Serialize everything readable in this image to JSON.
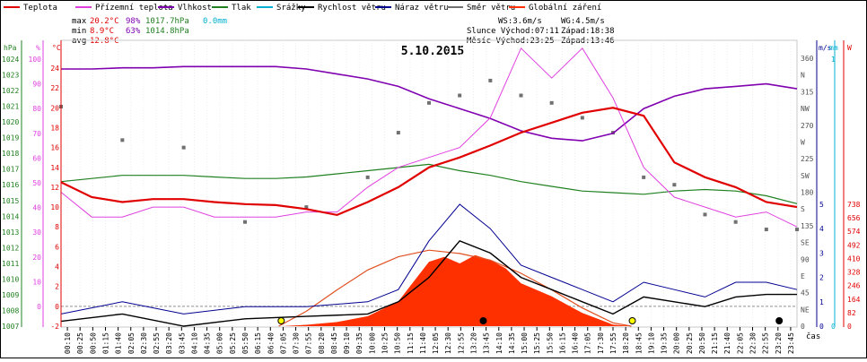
{
  "chart_data": {
    "type": "line",
    "title": "5.10.2015",
    "xlabel": "čas",
    "legend": {
      "placement": "top",
      "items": [
        {
          "label": "Teplota",
          "color": "#e00000"
        },
        {
          "label": "Přízemní teplota",
          "color": "#e040e0"
        },
        {
          "label": "Vlhkost",
          "color": "#8000b0"
        },
        {
          "label": "Tlak",
          "color": "#208020"
        },
        {
          "label": "Srážky",
          "color": "#00b0d0"
        },
        {
          "label": "Rychlost větru",
          "color": "#000000"
        },
        {
          "label": "Náraz větru",
          "color": "#000090"
        },
        {
          "label": "Směr větru",
          "color": "#707070"
        },
        {
          "label": "Globální záření",
          "color": "#ff3000"
        }
      ]
    },
    "stats": {
      "max": {
        "label": "max",
        "temp": "20.2°C",
        "hum": "98%",
        "press": "1017.7hPa",
        "rain": "0.0mm"
      },
      "min": {
        "label": "min",
        "temp": "8.9°C",
        "hum": "63%",
        "press": "1014.8hPa"
      },
      "avg": {
        "label": "avg",
        "temp": "12.8°C"
      }
    },
    "info": {
      "ws": "WS:3.6m/s",
      "wg": "WG:4.5m/s",
      "sun": "Slunce Východ:07:11",
      "sunset": "Západ:18:38",
      "moon": "Měsíc  Východ:23:25",
      "moonset": "Západ:13:46"
    },
    "axes": {
      "pressure": {
        "unit": "hPa",
        "ticks": [
          "1024",
          "1023",
          "1022",
          "1021",
          "1020",
          "1019",
          "1018",
          "1017",
          "1016",
          "1015",
          "1014",
          "1013",
          "1012",
          "1011",
          "1010",
          "1009",
          "1008",
          "1007"
        ]
      },
      "humidity": {
        "unit": "%",
        "ticks": [
          "100",
          "90",
          "80",
          "70",
          "60",
          "50",
          "40",
          "30",
          "20",
          "10",
          "0"
        ]
      },
      "temperature": {
        "unit": "°C",
        "ticks": [
          "24",
          "22",
          "20",
          "18",
          "16",
          "14",
          "12",
          "10",
          "8",
          "6",
          "4",
          "2",
          "0",
          "-2"
        ]
      },
      "direction": {
        "ticks": [
          "360",
          "N",
          "315",
          "NW",
          "270",
          "W",
          "225",
          "SW",
          "180",
          "S",
          "135",
          "SE",
          "90",
          "E",
          "45",
          "NE",
          "0"
        ]
      },
      "wind": {
        "unit": "m/s",
        "ticks": [
          "5",
          "4",
          "3",
          "2",
          "1",
          "0"
        ]
      },
      "rain": {
        "unit": "mm",
        "ticks": [
          "1",
          "0"
        ]
      },
      "radiation": {
        "unit": "W",
        "ticks": [
          "738",
          "656",
          "574",
          "492",
          "410",
          "328",
          "246",
          "164",
          "82",
          "0"
        ]
      },
      "time": [
        "00:10",
        "00:25",
        "00:50",
        "01:15",
        "01:40",
        "02:05",
        "02:30",
        "02:55",
        "03:20",
        "03:45",
        "04:10",
        "04:35",
        "05:00",
        "05:25",
        "05:50",
        "06:15",
        "06:40",
        "07:05",
        "07:30",
        "07:55",
        "08:20",
        "08:45",
        "09:10",
        "09:35",
        "10:00",
        "10:25",
        "10:50",
        "11:15",
        "11:40",
        "12:05",
        "12:30",
        "12:55",
        "13:20",
        "13:45",
        "14:10",
        "14:35",
        "15:00",
        "15:25",
        "15:50",
        "16:15",
        "16:40",
        "17:05",
        "17:30",
        "17:55",
        "18:20",
        "18:45",
        "19:10",
        "19:35",
        "20:00",
        "20:25",
        "20:50",
        "21:15",
        "21:40",
        "22:05",
        "22:30",
        "22:55",
        "23:20",
        "23:45"
      ]
    },
    "series": {
      "temperature": [
        [
          0,
          12.5
        ],
        [
          1,
          11
        ],
        [
          2,
          10.5
        ],
        [
          3,
          10.8
        ],
        [
          4,
          10.8
        ],
        [
          5,
          10.5
        ],
        [
          6,
          10.3
        ],
        [
          7,
          10.2
        ],
        [
          8,
          9.8
        ],
        [
          9,
          9.2
        ],
        [
          10,
          10.5
        ],
        [
          11,
          12
        ],
        [
          12,
          14
        ],
        [
          13,
          15
        ],
        [
          14,
          16.2
        ],
        [
          15,
          17.5
        ],
        [
          16,
          18.5
        ],
        [
          17,
          19.5
        ],
        [
          18,
          20
        ],
        [
          19,
          19.2
        ],
        [
          20,
          14.5
        ],
        [
          21,
          13
        ],
        [
          22,
          12
        ],
        [
          23,
          10.5
        ],
        [
          24,
          10
        ]
      ],
      "ground_temperature": [
        [
          0,
          11.5
        ],
        [
          1,
          9
        ],
        [
          2,
          9
        ],
        [
          3,
          10
        ],
        [
          4,
          10
        ],
        [
          5,
          9
        ],
        [
          6,
          9
        ],
        [
          7,
          9
        ],
        [
          8,
          9.5
        ],
        [
          9,
          9.5
        ],
        [
          10,
          12
        ],
        [
          11,
          14
        ],
        [
          12,
          15
        ],
        [
          13,
          16
        ],
        [
          14,
          19
        ],
        [
          15,
          26
        ],
        [
          16,
          23
        ],
        [
          17,
          26
        ],
        [
          18,
          21
        ],
        [
          19,
          14
        ],
        [
          20,
          11
        ],
        [
          21,
          10
        ],
        [
          22,
          9
        ],
        [
          23,
          9.5
        ],
        [
          24,
          8
        ]
      ],
      "humidity": [
        [
          0,
          96
        ],
        [
          1,
          96
        ],
        [
          2,
          96.5
        ],
        [
          3,
          96.5
        ],
        [
          4,
          97
        ],
        [
          5,
          97
        ],
        [
          6,
          97
        ],
        [
          7,
          97
        ],
        [
          8,
          96
        ],
        [
          9,
          94
        ],
        [
          10,
          92
        ],
        [
          11,
          89
        ],
        [
          12,
          84
        ],
        [
          13,
          80
        ],
        [
          14,
          76
        ],
        [
          15,
          71
        ],
        [
          16,
          68
        ],
        [
          17,
          67
        ],
        [
          18,
          70
        ],
        [
          19,
          80
        ],
        [
          20,
          85
        ],
        [
          21,
          88
        ],
        [
          22,
          89
        ],
        [
          23,
          90
        ],
        [
          24,
          88
        ]
      ],
      "pressure": [
        [
          0,
          1016.2
        ],
        [
          1,
          1016.4
        ],
        [
          2,
          1016.6
        ],
        [
          3,
          1016.6
        ],
        [
          4,
          1016.6
        ],
        [
          5,
          1016.5
        ],
        [
          6,
          1016.4
        ],
        [
          7,
          1016.4
        ],
        [
          8,
          1016.5
        ],
        [
          9,
          1016.7
        ],
        [
          10,
          1016.9
        ],
        [
          11,
          1017.1
        ],
        [
          12,
          1017.3
        ],
        [
          13,
          1016.9
        ],
        [
          14,
          1016.6
        ],
        [
          15,
          1016.2
        ],
        [
          16,
          1015.9
        ],
        [
          17,
          1015.6
        ],
        [
          18,
          1015.5
        ],
        [
          19,
          1015.4
        ],
        [
          20,
          1015.6
        ],
        [
          21,
          1015.7
        ],
        [
          22,
          1015.6
        ],
        [
          23,
          1015.3
        ],
        [
          24,
          1014.8
        ]
      ],
      "wind_speed": [
        [
          0,
          0.2
        ],
        [
          2,
          0.5
        ],
        [
          4,
          0
        ],
        [
          6,
          0.3
        ],
        [
          8,
          0.4
        ],
        [
          10,
          0.5
        ],
        [
          11,
          1
        ],
        [
          12,
          2
        ],
        [
          13,
          3.5
        ],
        [
          14,
          3
        ],
        [
          15,
          2
        ],
        [
          16,
          1.5
        ],
        [
          17,
          1
        ],
        [
          18,
          0.5
        ],
        [
          19,
          1.2
        ],
        [
          20,
          1
        ],
        [
          21,
          0.8
        ],
        [
          22,
          1.2
        ],
        [
          23,
          1.3
        ],
        [
          24,
          1.3
        ]
      ],
      "wind_gust": [
        [
          0,
          0.5
        ],
        [
          2,
          1
        ],
        [
          4,
          0.5
        ],
        [
          6,
          0.8
        ],
        [
          8,
          0.8
        ],
        [
          10,
          1
        ],
        [
          11,
          1.5
        ],
        [
          12,
          3.5
        ],
        [
          13,
          5
        ],
        [
          14,
          4
        ],
        [
          15,
          2.5
        ],
        [
          16,
          2
        ],
        [
          17,
          1.5
        ],
        [
          18,
          1
        ],
        [
          19,
          1.8
        ],
        [
          20,
          1.5
        ],
        [
          21,
          1.2
        ],
        [
          22,
          1.8
        ],
        [
          23,
          1.8
        ],
        [
          24,
          1.5
        ]
      ],
      "wind_direction": [
        [
          0,
          295
        ],
        [
          2,
          250
        ],
        [
          4,
          240
        ],
        [
          6,
          140
        ],
        [
          8,
          160
        ],
        [
          10,
          200
        ],
        [
          11,
          260
        ],
        [
          12,
          300
        ],
        [
          13,
          310
        ],
        [
          14,
          330
        ],
        [
          15,
          310
        ],
        [
          16,
          300
        ],
        [
          17,
          280
        ],
        [
          18,
          260
        ],
        [
          19,
          200
        ],
        [
          20,
          190
        ],
        [
          21,
          150
        ],
        [
          22,
          140
        ],
        [
          23,
          130
        ],
        [
          24,
          130
        ]
      ],
      "radiation": [
        [
          7.2,
          0
        ],
        [
          8,
          8
        ],
        [
          9,
          25
        ],
        [
          10,
          60
        ],
        [
          11,
          150
        ],
        [
          12,
          390
        ],
        [
          12.5,
          420
        ],
        [
          13,
          380
        ],
        [
          13.5,
          430
        ],
        [
          14,
          400
        ],
        [
          14.5,
          350
        ],
        [
          15,
          260
        ],
        [
          16,
          180
        ],
        [
          17,
          80
        ],
        [
          18,
          10
        ],
        [
          18.6,
          0
        ]
      ],
      "clear_sky_radiation": [
        [
          7.1,
          0
        ],
        [
          8,
          90
        ],
        [
          9,
          220
        ],
        [
          10,
          340
        ],
        [
          11,
          420
        ],
        [
          12,
          460
        ],
        [
          13,
          440
        ],
        [
          14,
          400
        ],
        [
          15,
          320
        ],
        [
          16,
          220
        ],
        [
          17,
          110
        ],
        [
          18,
          20
        ],
        [
          18.6,
          0
        ]
      ]
    }
  }
}
